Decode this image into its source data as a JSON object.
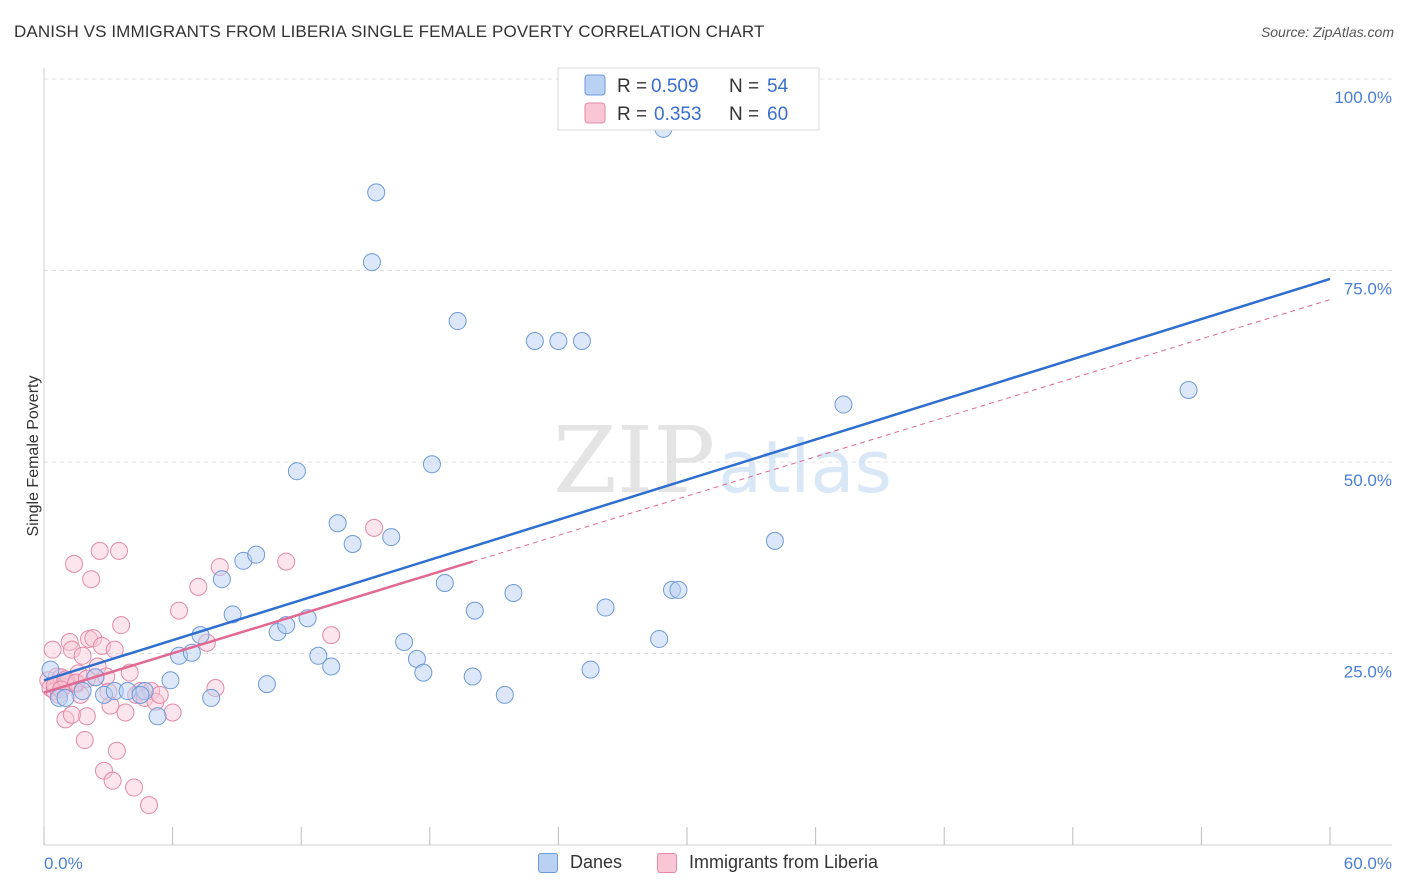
{
  "header": {
    "title": "DANISH VS IMMIGRANTS FROM LIBERIA SINGLE FEMALE POVERTY CORRELATION CHART",
    "source": "Source: ZipAtlas.com"
  },
  "legend_top": {
    "row1": {
      "r_label": "R =",
      "r_value": "0.509",
      "n_label": "N =",
      "n_value": "54"
    },
    "row2": {
      "r_label": "R =",
      "r_value": "0.353",
      "n_label": "N =",
      "n_value": "60"
    }
  },
  "legend_bottom": {
    "danes": "Danes",
    "liberia": "Immigrants from Liberia"
  },
  "colors": {
    "danes_fill": "#b9d1f3",
    "danes_stroke": "#6f9ad8",
    "danes_line": "#2f6fcf",
    "liberia_fill": "#f8c6d5",
    "liberia_stroke": "#e38aa8",
    "liberia_line": "#e06a94",
    "axis_text": "#4a7fd4"
  },
  "chart_data": {
    "type": "scatter",
    "title": "DANISH VS IMMIGRANTS FROM LIBERIA SINGLE FEMALE POVERTY CORRELATION CHART",
    "xlabel": "",
    "ylabel": "Single Female Poverty",
    "xlim": [
      0,
      60
    ],
    "ylim": [
      0,
      100
    ],
    "x_tick_labels": [
      "0.0%",
      "60.0%"
    ],
    "y_tick_labels": [
      "25.0%",
      "50.0%",
      "75.0%",
      "100.0%"
    ],
    "y_ticks": [
      25,
      50,
      75,
      100
    ],
    "watermark": {
      "part1": "ZIP",
      "part2": "atlas"
    },
    "series": [
      {
        "name": "Danes",
        "r": 0.509,
        "n": 54,
        "trend": {
          "x": [
            0,
            60
          ],
          "y": [
            21.5,
            73.9
          ]
        },
        "points": [
          [
            0.3,
            22.9
          ],
          [
            0.7,
            19.2
          ],
          [
            1.0,
            19.2
          ],
          [
            1.8,
            20.1
          ],
          [
            2.4,
            21.9
          ],
          [
            2.8,
            19.6
          ],
          [
            3.3,
            20.1
          ],
          [
            3.9,
            20.1
          ],
          [
            4.7,
            20.1
          ],
          [
            4.5,
            19.6
          ],
          [
            5.3,
            16.8
          ],
          [
            5.9,
            21.5
          ],
          [
            6.3,
            24.7
          ],
          [
            6.9,
            25.1
          ],
          [
            7.3,
            27.4
          ],
          [
            7.8,
            19.2
          ],
          [
            8.3,
            34.7
          ],
          [
            8.8,
            30.1
          ],
          [
            9.3,
            37.1
          ],
          [
            9.9,
            37.9
          ],
          [
            10.4,
            21.0
          ],
          [
            10.9,
            27.8
          ],
          [
            11.3,
            28.7
          ],
          [
            11.8,
            48.8
          ],
          [
            12.3,
            29.6
          ],
          [
            12.8,
            24.7
          ],
          [
            13.4,
            23.3
          ],
          [
            13.7,
            42.0
          ],
          [
            14.4,
            39.3
          ],
          [
            15.3,
            76.1
          ],
          [
            15.5,
            85.2
          ],
          [
            16.2,
            40.2
          ],
          [
            16.8,
            26.5
          ],
          [
            17.4,
            24.3
          ],
          [
            17.7,
            22.5
          ],
          [
            18.1,
            49.7
          ],
          [
            18.7,
            34.2
          ],
          [
            19.3,
            68.4
          ],
          [
            20.0,
            22.0
          ],
          [
            20.1,
            30.6
          ],
          [
            21.5,
            19.6
          ],
          [
            21.9,
            32.9
          ],
          [
            22.9,
            65.8
          ],
          [
            24.0,
            65.8
          ],
          [
            25.1,
            65.8
          ],
          [
            25.5,
            22.9
          ],
          [
            26.2,
            31.0
          ],
          [
            28.7,
            26.9
          ],
          [
            29.3,
            33.3
          ],
          [
            29.6,
            33.3
          ],
          [
            34.1,
            39.7
          ],
          [
            37.3,
            57.5
          ],
          [
            53.4,
            59.4
          ],
          [
            28.9,
            93.5
          ]
        ]
      },
      {
        "name": "Immigrants from Liberia",
        "r": 0.353,
        "n": 60,
        "trend": {
          "x": [
            0,
            20
          ],
          "y": [
            19.9,
            37.0
          ]
        },
        "points": [
          [
            0.2,
            21.5
          ],
          [
            0.3,
            20.5
          ],
          [
            0.4,
            25.5
          ],
          [
            0.5,
            20.1
          ],
          [
            0.6,
            22.0
          ],
          [
            0.7,
            19.6
          ],
          [
            0.8,
            21.9
          ],
          [
            0.9,
            20.7
          ],
          [
            1.0,
            16.4
          ],
          [
            1.1,
            21.3
          ],
          [
            1.2,
            26.5
          ],
          [
            1.3,
            25.5
          ],
          [
            1.4,
            36.7
          ],
          [
            1.5,
            21.0
          ],
          [
            1.6,
            22.4
          ],
          [
            1.7,
            19.6
          ],
          [
            1.8,
            24.7
          ],
          [
            1.9,
            13.7
          ],
          [
            2.0,
            16.8
          ],
          [
            2.1,
            26.9
          ],
          [
            2.2,
            34.7
          ],
          [
            2.3,
            27.0
          ],
          [
            2.4,
            21.9
          ],
          [
            2.5,
            23.3
          ],
          [
            2.6,
            38.4
          ],
          [
            2.7,
            26.0
          ],
          [
            2.8,
            9.7
          ],
          [
            2.9,
            22.0
          ],
          [
            3.0,
            20.0
          ],
          [
            3.1,
            18.2
          ],
          [
            3.2,
            8.4
          ],
          [
            3.3,
            25.5
          ],
          [
            3.4,
            12.3
          ],
          [
            3.5,
            38.4
          ],
          [
            3.6,
            28.7
          ],
          [
            3.8,
            17.3
          ],
          [
            4.0,
            22.5
          ],
          [
            4.2,
            7.5
          ],
          [
            4.3,
            19.6
          ],
          [
            4.5,
            20.1
          ],
          [
            4.7,
            19.2
          ],
          [
            4.9,
            5.2
          ],
          [
            5.0,
            20.1
          ],
          [
            5.2,
            18.7
          ],
          [
            5.4,
            19.6
          ],
          [
            6.0,
            17.3
          ],
          [
            6.3,
            30.6
          ],
          [
            7.2,
            33.7
          ],
          [
            7.6,
            26.4
          ],
          [
            8.0,
            20.5
          ],
          [
            8.2,
            36.3
          ],
          [
            11.3,
            37.0
          ],
          [
            13.4,
            27.4
          ],
          [
            15.4,
            41.4
          ],
          [
            0.5,
            20.8
          ],
          [
            1.0,
            21.6
          ],
          [
            1.5,
            21.2
          ],
          [
            0.8,
            20.3
          ],
          [
            1.3,
            17.0
          ],
          [
            2.0,
            21.7
          ]
        ]
      }
    ]
  }
}
